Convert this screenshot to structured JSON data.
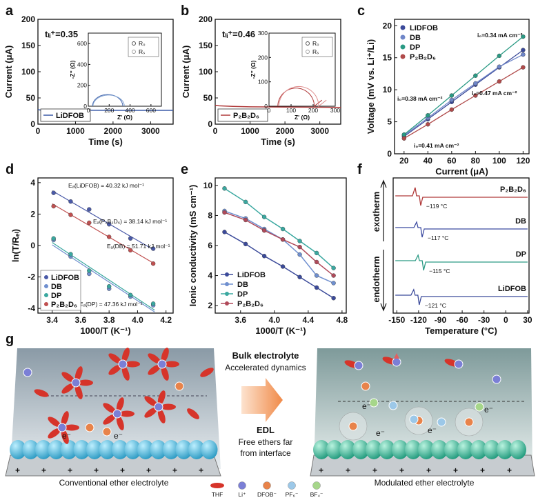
{
  "panels": {
    "a": {
      "label": "a",
      "tli": "tₗᵢ⁺=0.35",
      "chart_data": {
        "type": "line",
        "xlabel": "Time (s)",
        "ylabel": "Current (μA)",
        "xlim": [
          0,
          3600
        ],
        "ylim": [
          0,
          200
        ],
        "xticks": [
          "0",
          "1000",
          "2000",
          "3000"
        ],
        "yticks": [
          "0",
          "50",
          "100",
          "150",
          "200"
        ],
        "series": [
          {
            "name": "LiDFOB",
            "color": "#3b5ba8",
            "x": [
              0,
              50,
              200,
              1000,
              2000,
              3000,
              3600
            ],
            "y": [
              28,
              27,
              26.5,
              26.4,
              26.3,
              26.3,
              26.3
            ]
          }
        ],
        "inset": {
          "xlabel": "Z' (Ω)",
          "ylabel": "-Z'' (Ω)",
          "xlim": [
            0,
            700
          ],
          "ylim": [
            0,
            700
          ],
          "xticks": [
            "0",
            "200",
            "400",
            "600"
          ],
          "yticks": [
            "0",
            "200",
            "400",
            "600"
          ],
          "legend": [
            "R₀",
            "Rₛ"
          ]
        }
      }
    },
    "b": {
      "label": "b",
      "tli": "tₗᵢ⁺=0.46",
      "chart_data": {
        "type": "line",
        "xlabel": "Time (s)",
        "ylabel": "Current (μA)",
        "xlim": [
          0,
          3600
        ],
        "ylim": [
          0,
          200
        ],
        "xticks": [
          "0",
          "1000",
          "2000",
          "3000"
        ],
        "yticks": [
          "0",
          "50",
          "100",
          "150",
          "200"
        ],
        "series": [
          {
            "name": "P₂B₂D₆",
            "color": "#b03a3a",
            "x": [
              0,
              100,
              500,
              1000,
              2000,
              3000,
              3600
            ],
            "y": [
              36,
              35,
              34,
              33,
              32.5,
              32.2,
              32
            ]
          }
        ],
        "inset": {
          "xlabel": "Z' (Ω)",
          "ylabel": "-Z'' (Ω)",
          "xlim": [
            0,
            300
          ],
          "ylim": [
            0,
            300
          ],
          "xticks": [
            "0",
            "100",
            "200",
            "300"
          ],
          "yticks": [
            "0",
            "100",
            "200",
            "300"
          ],
          "legend": [
            "R₀",
            "Rₛ"
          ]
        }
      }
    },
    "c": {
      "label": "c",
      "chart_data": {
        "type": "scatter",
        "xlabel": "Current (μA)",
        "ylabel": "Voltage (mV vs. Li⁺/Li)",
        "xlim": [
          12,
          125
        ],
        "ylim": [
          0,
          21
        ],
        "xticks": [
          "20",
          "40",
          "60",
          "80",
          "100",
          "120"
        ],
        "yticks": [
          "0",
          "5",
          "10",
          "15",
          "20"
        ],
        "x": [
          20,
          40,
          60,
          80,
          100,
          120
        ],
        "series": [
          {
            "name": "LiDFOB",
            "color": "#3b4a9a",
            "y": [
              2.7,
              5.4,
              8.1,
              10.8,
              13.5,
              16.2
            ]
          },
          {
            "name": "DB",
            "color": "#6f86c8",
            "y": [
              2.9,
              5.6,
              8.4,
              11.0,
              13.6,
              15.5
            ]
          },
          {
            "name": "DP",
            "color": "#2a9a84",
            "y": [
              3.0,
              6.0,
              9.1,
              12.2,
              15.3,
              18.3
            ]
          },
          {
            "name": "P₂B₂D₆",
            "color": "#b04a4a",
            "y": [
              2.4,
              4.6,
              6.9,
              9.1,
              11.3,
              13.5
            ]
          }
        ],
        "annotations": [
          {
            "text": "i₀=0.34 mA cm⁻²",
            "color": "#2a9a84"
          },
          {
            "text": "i₀=0.38 mA cm⁻²",
            "color": "#3b4a9a"
          },
          {
            "text": "i₀=0.47 mA cm⁻²",
            "color": "#b04a4a"
          },
          {
            "text": "i₀=0.41 mA cm⁻²",
            "color": "#6f6fc0"
          }
        ]
      }
    },
    "d": {
      "label": "d",
      "chart_data": {
        "type": "scatter",
        "xlabel": "1000/T (K⁻¹)",
        "ylabel": "ln(T/Rₑₗ)",
        "xlim": [
          3.3,
          4.25
        ],
        "ylim": [
          -4.3,
          4.3
        ],
        "xticks": [
          "3.4",
          "3.6",
          "3.8",
          "4.0",
          "4.2"
        ],
        "yticks": [
          "-4",
          "-2",
          "0",
          "2",
          "4"
        ],
        "x": [
          3.41,
          3.53,
          3.66,
          3.8,
          3.95,
          4.11
        ],
        "series": [
          {
            "name": "LiDFOB",
            "color": "#4a5aa8",
            "y": [
              3.35,
              2.8,
              2.3,
              1.35,
              0.45,
              -0.2
            ]
          },
          {
            "name": "DB",
            "color": "#6f8fcf",
            "y": [
              0.35,
              -0.7,
              -1.8,
              -2.75,
              -3.25,
              -3.8
            ]
          },
          {
            "name": "DP",
            "color": "#3aa8a0",
            "y": [
              0.45,
              -0.55,
              -1.6,
              -2.6,
              -3.15,
              -3.7
            ]
          },
          {
            "name": "P₂B₂D₆",
            "color": "#c05050",
            "y": [
              2.5,
              1.95,
              1.45,
              0.55,
              -0.3,
              -1.15
            ]
          }
        ],
        "annotations": [
          "Eₐ(LiDFOB) = 40.32 kJ mol⁻¹",
          "Eₐ(P₂B₂D₆) = 38.14 kJ mol⁻¹",
          "Eₐ(DB) = 51.71 kJ mol⁻¹",
          "Eₐ(DP) = 47.36 kJ mol⁻¹"
        ]
      }
    },
    "e": {
      "label": "e",
      "chart_data": {
        "type": "line",
        "xlabel": "1000/T (K⁻¹)",
        "ylabel": "Ionic conductivity (mS cm⁻¹)",
        "xlim": [
          3.3,
          4.85
        ],
        "ylim": [
          1.5,
          10.5
        ],
        "xticks": [
          "3.6",
          "4.0",
          "4.4",
          "4.8"
        ],
        "yticks": [
          "2",
          "4",
          "6",
          "8",
          "10"
        ],
        "x": [
          3.41,
          3.66,
          3.88,
          4.1,
          4.3,
          4.5,
          4.7
        ],
        "series": [
          {
            "name": "LiDFOB",
            "color": "#3b4a9a",
            "y": [
              6.9,
              6.1,
              5.3,
              4.6,
              3.9,
              3.2,
              2.5
            ]
          },
          {
            "name": "DB",
            "color": "#6f8fcf",
            "y": [
              8.3,
              7.8,
              7.1,
              6.4,
              5.4,
              4.0,
              3.5
            ]
          },
          {
            "name": "DP",
            "color": "#3aa8a0",
            "y": [
              9.8,
              8.9,
              7.9,
              7.1,
              6.3,
              5.5,
              4.5
            ]
          },
          {
            "name": "P₂B₂D₆",
            "color": "#b04a5a",
            "y": [
              8.2,
              7.7,
              7.0,
              6.4,
              5.9,
              4.9,
              4.0
            ]
          }
        ]
      }
    },
    "f": {
      "label": "f",
      "chart_data": {
        "type": "line",
        "xlabel": "Temperature (°C)",
        "ylabel_top": "exotherm",
        "ylabel_bottom": "endotherm",
        "xlim": [
          -155,
          32
        ],
        "xticks": [
          "-150",
          "-120",
          "-90",
          "-60",
          "-30",
          "0",
          "30"
        ],
        "series": [
          {
            "name": "P₂B₂D₆",
            "color": "#b03a3a",
            "peak": "−119 °C",
            "peak_x": -119
          },
          {
            "name": "DB",
            "color": "#3b4aa0",
            "peak": "−117 °C",
            "peak_x": -117
          },
          {
            "name": "DP",
            "color": "#2a9a84",
            "peak": "−115 °C",
            "peak_x": -115
          },
          {
            "name": "LiDFOB",
            "color": "#3b4a9a",
            "peak": "−121 °C",
            "peak_x": -121
          }
        ]
      }
    },
    "g": {
      "label": "g",
      "bulk_title": "Bulk electrolyte",
      "bulk_sub": "Accelerated dynamics",
      "edl_title": "EDL",
      "edl_sub1": "Free ethers far",
      "edl_sub2": "from interface",
      "left_caption": "Conventional ether electrolyte",
      "right_caption": "Modulated ether electrolyte",
      "legend": [
        "THF",
        "Li⁺",
        "DFOB⁻",
        "PF₆⁻",
        "BF₄⁻"
      ],
      "electron": "e⁻",
      "colors": {
        "thf": "#d6342a",
        "li": "#7b7fd6",
        "dfob": "#e8834a",
        "pf6": "#9cc8e8",
        "bf4": "#a6d68a",
        "electrode_left": "#3fb8d8",
        "electrode_right": "#2fb89a"
      }
    }
  }
}
